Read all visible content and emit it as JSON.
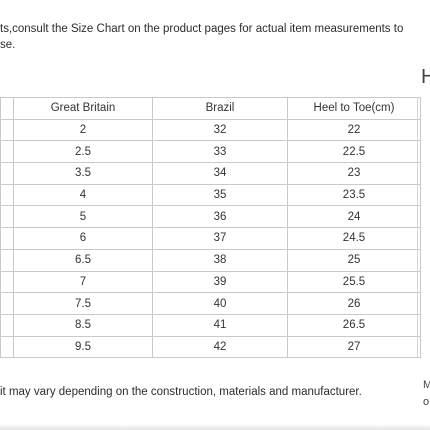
{
  "intro": {
    "line1": "ts,consult the Size Chart on the product pages for actual item measurements to",
    "line2": "se."
  },
  "cut_letter": "H",
  "table": {
    "headers": [
      "",
      "Great Britain",
      "Brazil",
      "Heel to Toe(cm)"
    ],
    "rows": [
      [
        "",
        "2",
        "32",
        "22"
      ],
      [
        "",
        "2.5",
        "33",
        "22.5"
      ],
      [
        "",
        "3.5",
        "34",
        "23"
      ],
      [
        "",
        "4",
        "35",
        "23.5"
      ],
      [
        "",
        "5",
        "36",
        "24"
      ],
      [
        "",
        "6",
        "37",
        "24.5"
      ],
      [
        "",
        "6.5",
        "38",
        "25"
      ],
      [
        "",
        "7",
        "39",
        "25.5"
      ],
      [
        "",
        "7.5",
        "40",
        "26"
      ],
      [
        "",
        "8.5",
        "41",
        "26.5"
      ],
      [
        "",
        "9.5",
        "42",
        "27"
      ]
    ]
  },
  "footnote": "it may vary depending on the construction, materials and manufacturer.",
  "right_fragment": {
    "line1": "M",
    "line2": "o"
  }
}
